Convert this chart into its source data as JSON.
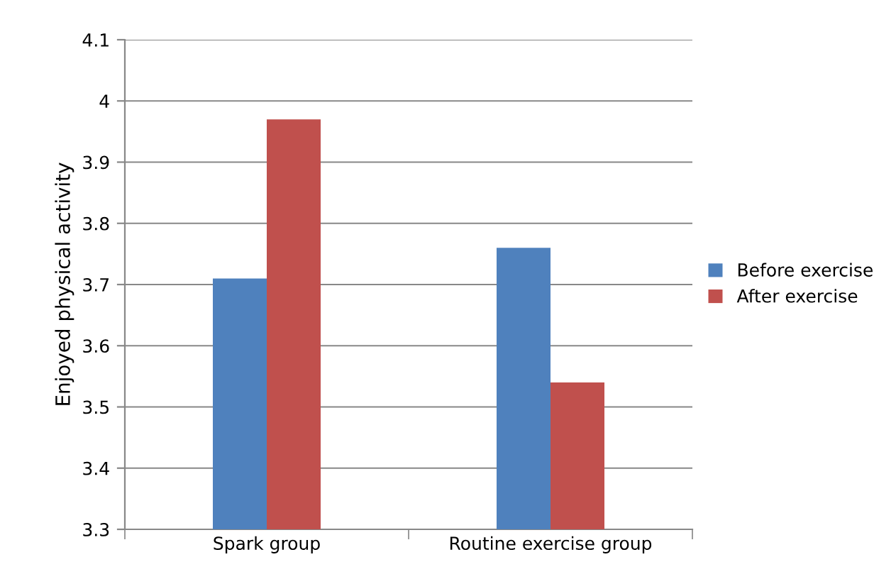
{
  "chart_data": {
    "type": "bar",
    "ylabel": "Enjoyed physical activity",
    "categories": [
      "Spark group",
      "Routine exercise group"
    ],
    "series": [
      {
        "name": "Before exercise",
        "color": "#4f81bd",
        "values": [
          3.71,
          3.76
        ]
      },
      {
        "name": "After exercise",
        "color": "#c0504d",
        "values": [
          3.97,
          3.54
        ]
      }
    ],
    "ylim": [
      3.3,
      4.1
    ],
    "yticks": [
      3.3,
      3.4,
      3.5,
      3.6,
      3.7,
      3.8,
      3.9,
      4,
      4.1
    ],
    "grid": "y",
    "legend": "right"
  }
}
